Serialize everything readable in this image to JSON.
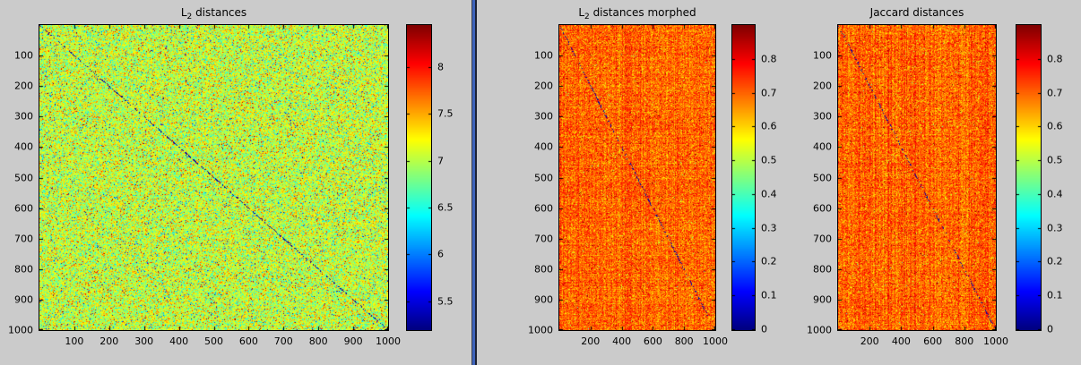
{
  "figure": {
    "background_color": "#cbcbcb",
    "divider": {
      "description": "vertical pane splitter between left plot and right two plots",
      "colors": [
        "#3c4150",
        "#3e63bb",
        "#1c2133"
      ]
    }
  },
  "chart_data": [
    {
      "type": "heatmap",
      "title": "L_2 distances",
      "title_parts": [
        {
          "text": "L"
        },
        {
          "text": "2",
          "sub": true
        },
        {
          "text": " distances"
        }
      ],
      "matrix_description": "1000x1000 pairwise L2 distance matrix; fine yellow-green speckle noise with cyan and orange-red outliers; faint dark dashed main diagonal (self-distance near minimum)",
      "x_range": [
        1,
        1000
      ],
      "y_range": [
        1,
        1000
      ],
      "x_ticks": [
        100,
        200,
        300,
        400,
        500,
        600,
        700,
        800,
        900,
        1000
      ],
      "y_ticks": [
        100,
        200,
        300,
        400,
        500,
        600,
        700,
        800,
        900,
        1000
      ],
      "colormap": "jet",
      "color_limits": [
        5.2,
        8.45
      ],
      "colorbar_ticks": [
        5.5,
        6,
        6.5,
        7,
        7.5,
        8
      ],
      "value_distribution": {
        "mean": 7.05,
        "std": 0.3,
        "outlier_rate": 0.12,
        "outlier_std": 0.75
      },
      "streaks": {
        "row": 0,
        "col": 0
      },
      "diagonal": {
        "value": "near minimum (dark)",
        "dash_rate": 0.5
      }
    },
    {
      "type": "heatmap",
      "title": "L_2 distances morphed",
      "title_parts": [
        {
          "text": "L"
        },
        {
          "text": "2",
          "sub": true
        },
        {
          "text": " distances morphed"
        }
      ],
      "matrix_description": "1000x1000 morphed L2 distance matrix; orange-red speckle noise with yellow outliers and faint row/column streaks; faint dark dotted main diagonal",
      "x_range": [
        1,
        1000
      ],
      "y_range": [
        1,
        1000
      ],
      "x_ticks": [
        200,
        400,
        600,
        800,
        1000
      ],
      "y_ticks": [
        100,
        200,
        300,
        400,
        500,
        600,
        700,
        800,
        900,
        1000
      ],
      "colormap": "jet",
      "color_limits": [
        0,
        0.9
      ],
      "colorbar_ticks": [
        0,
        0.1,
        0.2,
        0.3,
        0.4,
        0.5,
        0.6,
        0.7,
        0.8
      ],
      "value_distribution": {
        "mean": 0.7,
        "std": 0.045,
        "outlier_rate": 0.2,
        "outlier_std": 0.09
      },
      "streaks": {
        "row": 0.012,
        "col": 0.022
      },
      "diagonal": {
        "value": "near minimum (dark)",
        "dash_rate": 0.3
      }
    },
    {
      "type": "heatmap",
      "title": "Jaccard distances",
      "title_parts": [
        {
          "text": "Jaccard distances"
        }
      ],
      "matrix_description": "1000x1000 Jaccard distance matrix; orange-red speckle noise with yellow outliers and faint row/column streaks; faint dark dotted main diagonal",
      "x_range": [
        1,
        1000
      ],
      "y_range": [
        1,
        1000
      ],
      "x_ticks": [
        200,
        400,
        600,
        800,
        1000
      ],
      "y_ticks": [
        100,
        200,
        300,
        400,
        500,
        600,
        700,
        800,
        900,
        1000
      ],
      "colormap": "jet",
      "color_limits": [
        0,
        0.9
      ],
      "colorbar_ticks": [
        0,
        0.1,
        0.2,
        0.3,
        0.4,
        0.5,
        0.6,
        0.7,
        0.8
      ],
      "value_distribution": {
        "mean": 0.7,
        "std": 0.045,
        "outlier_rate": 0.2,
        "outlier_std": 0.09
      },
      "streaks": {
        "row": 0.01,
        "col": 0.022
      },
      "diagonal": {
        "value": "near minimum (dark)",
        "dash_rate": 0.3
      }
    }
  ]
}
